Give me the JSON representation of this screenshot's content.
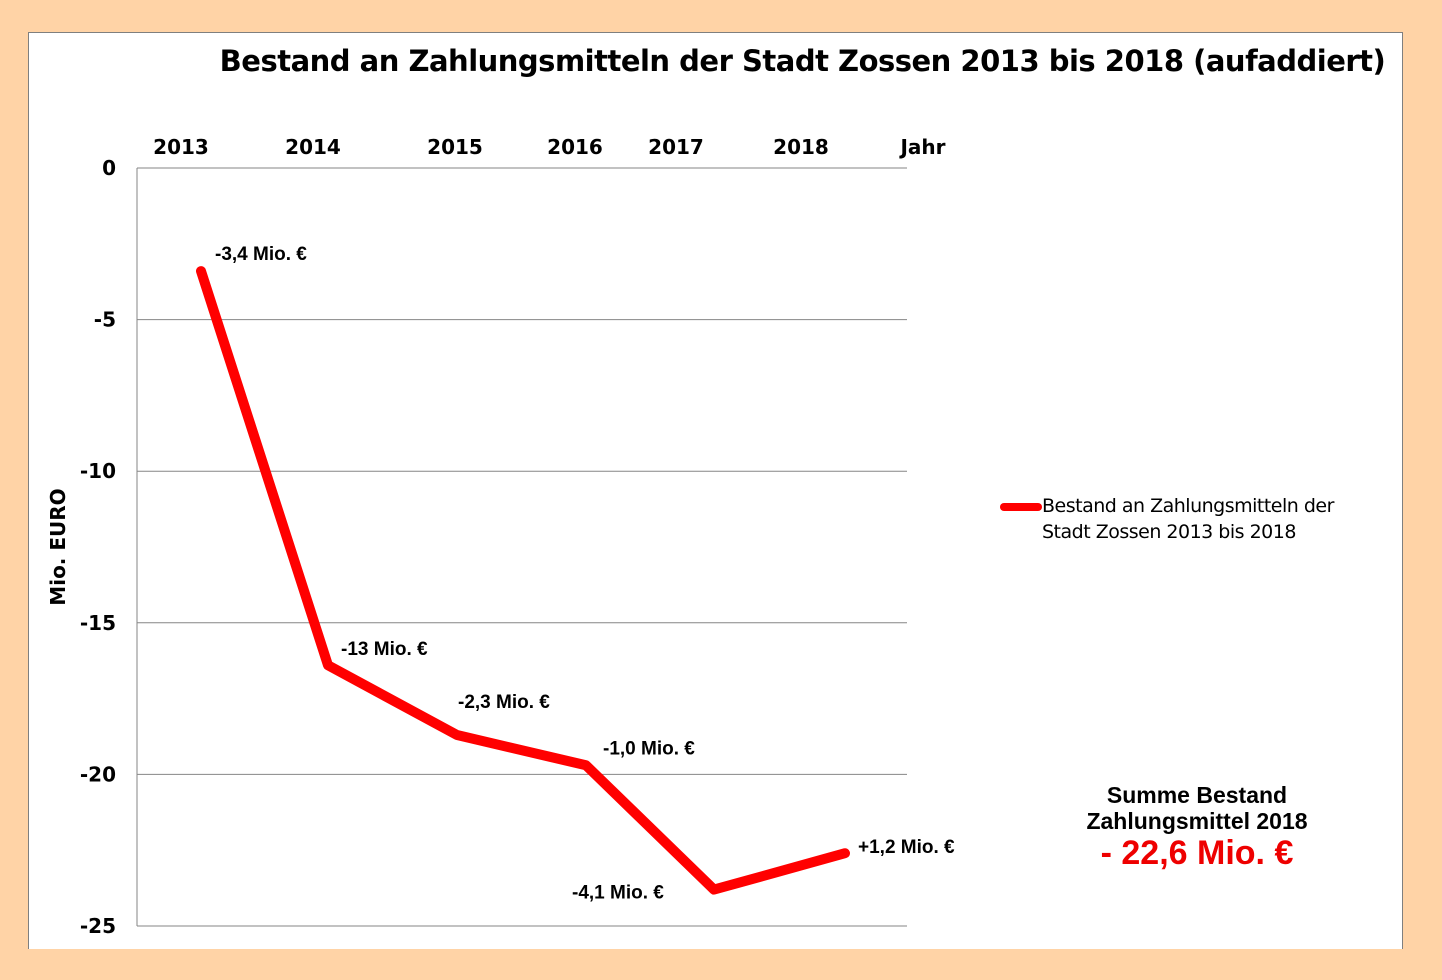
{
  "chart_data": {
    "type": "line",
    "title": "Bestand an Zahlungsmitteln der Stadt Zossen 2013 bis 2018 (aufaddiert)",
    "xlabel": "Jahr",
    "ylabel": "Mio. EURO",
    "categories": [
      "2013",
      "2014",
      "2015",
      "2016",
      "2017",
      "2018"
    ],
    "series": [
      {
        "name": "Bestand an Zahlungsmitteln der Stadt Zossen 2013 bis 2018",
        "values": [
          -3.4,
          -16.4,
          -18.7,
          -19.7,
          -23.8,
          -22.6
        ],
        "color": "#FF0000"
      }
    ],
    "data_labels": [
      "-3,4 Mio. €",
      "-13 Mio. €",
      "-2,3 Mio. €",
      "-1,0 Mio. €",
      "-4,1 Mio. €",
      "+1,2 Mio. €"
    ],
    "y_ticks": [
      "0",
      "-5",
      "-10",
      "-15",
      "-20",
      "-25"
    ],
    "ylim": [
      -25,
      0
    ],
    "x_axis_position": "top",
    "grid": true,
    "legend_position": "right"
  },
  "summary": {
    "line1": "Summe Bestand",
    "line2": "Zahlungsmittel 2018",
    "value": "- 22,6 Mio. €",
    "value_color": "#E00000"
  },
  "colors": {
    "background": "#FFD3A6",
    "plot": "#FFFFFF"
  }
}
